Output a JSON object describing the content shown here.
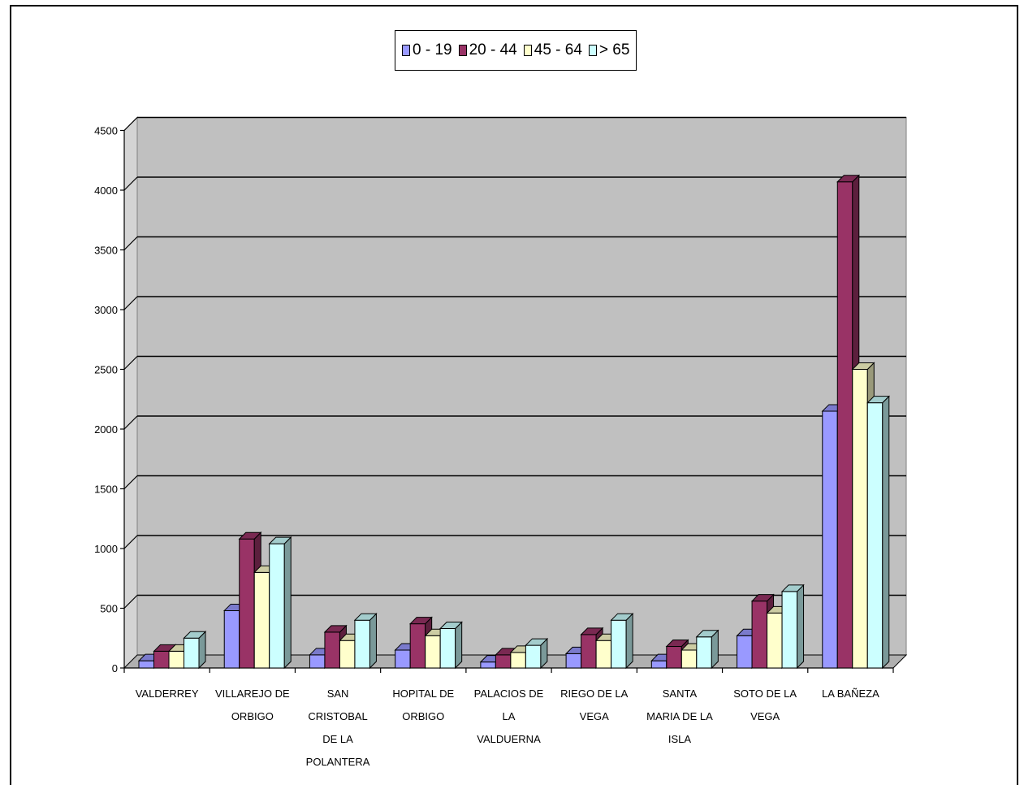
{
  "chart_data": {
    "type": "bar",
    "categories": [
      "VALDERREY",
      "VILLAREJO DE ORBIGO",
      "SAN CRISTOBAL DE LA POLANTERA",
      "HOPITAL DE ORBIGO",
      "PALACIOS DE LA VALDUERNA",
      "RIEGO DE LA VEGA",
      "SANTA MARIA DE LA ISLA",
      "SOTO DE LA VEGA",
      "LA BAÑEZA"
    ],
    "category_lines": [
      [
        "VALDERREY"
      ],
      [
        "VILLAREJO DE",
        "ORBIGO"
      ],
      [
        "SAN",
        "CRISTOBAL",
        "DE LA",
        "POLANTERA"
      ],
      [
        "HOPITAL DE",
        "ORBIGO"
      ],
      [
        "PALACIOS DE",
        "LA",
        "VALDUERNA"
      ],
      [
        "RIEGO DE LA",
        "VEGA"
      ],
      [
        "SANTA",
        "MARIA DE LA",
        "ISLA"
      ],
      [
        "SOTO DE LA",
        "VEGA"
      ],
      [
        "LA BAÑEZA"
      ]
    ],
    "series": [
      {
        "name": "0 - 19",
        "color": "#9999ff",
        "values": [
          60,
          480,
          110,
          150,
          50,
          120,
          60,
          270,
          2150
        ]
      },
      {
        "name": "20 - 44",
        "color": "#993366",
        "values": [
          140,
          1080,
          300,
          370,
          110,
          280,
          180,
          560,
          4070
        ]
      },
      {
        "name": "45 - 64",
        "color": "#ffffcc",
        "values": [
          140,
          800,
          230,
          270,
          130,
          230,
          150,
          460,
          2500
        ]
      },
      {
        "name": "> 65",
        "color": "#ccffff",
        "values": [
          250,
          1040,
          400,
          330,
          190,
          400,
          260,
          640,
          2220
        ]
      }
    ],
    "y_ticks": [
      "0",
      "500",
      "1000",
      "1500",
      "2000",
      "2500",
      "3000",
      "3500",
      "4000",
      "4500"
    ],
    "ylim": [
      0,
      4500
    ],
    "grid": true,
    "legend_position": "top-center",
    "wall_color": "#c0c0c0"
  }
}
